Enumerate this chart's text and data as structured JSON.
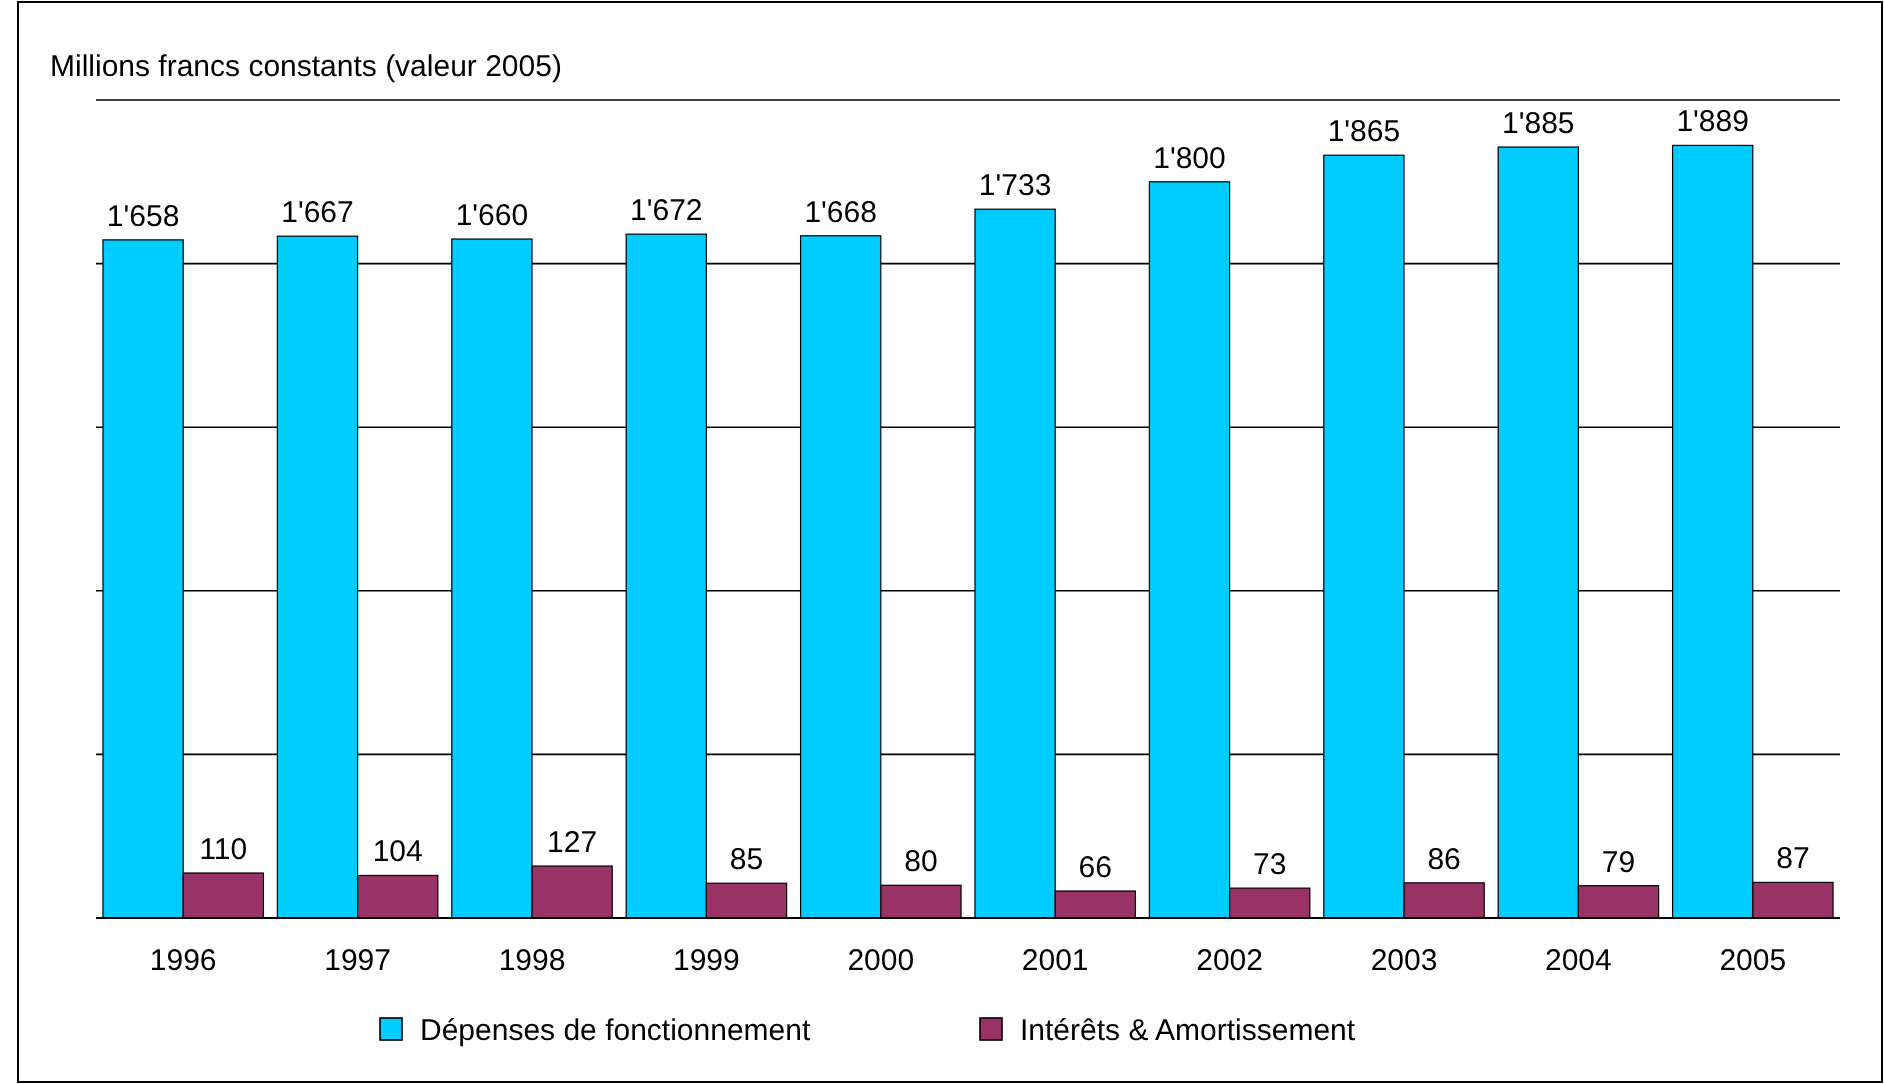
{
  "chart_data": {
    "type": "bar",
    "ylabel": "Millions francs constants (valeur 2005)",
    "categories": [
      "1996",
      "1997",
      "1998",
      "1999",
      "2000",
      "2001",
      "2002",
      "2003",
      "2004",
      "2005"
    ],
    "series": [
      {
        "name": "Dépenses de fonctionnement",
        "color": "#00ccff",
        "values": [
          1658,
          1667,
          1660,
          1672,
          1668,
          1733,
          1800,
          1865,
          1885,
          1889
        ],
        "value_labels": [
          "1'658",
          "1'667",
          "1'660",
          "1'672",
          "1'668",
          "1'733",
          "1'800",
          "1'865",
          "1'885",
          "1'889"
        ]
      },
      {
        "name": "Intérêts & Amortissement",
        "color": "#993366",
        "values": [
          110,
          104,
          127,
          85,
          80,
          66,
          73,
          86,
          79,
          87
        ],
        "value_labels": [
          "110",
          "104",
          "127",
          "85",
          "80",
          "66",
          "73",
          "86",
          "79",
          "87"
        ]
      }
    ],
    "ylim": [
      0,
      2000
    ],
    "yticks": [
      {
        "value": 0,
        "label": null
      },
      {
        "value": 400,
        "label": null
      },
      {
        "value": 800,
        "label": null
      },
      {
        "value": 1200,
        "label": null
      },
      {
        "value": 1600,
        "label": null
      },
      {
        "value": 2000,
        "label": null
      }
    ],
    "grid": "y",
    "tick_labels": "x",
    "legend": "bottom"
  }
}
